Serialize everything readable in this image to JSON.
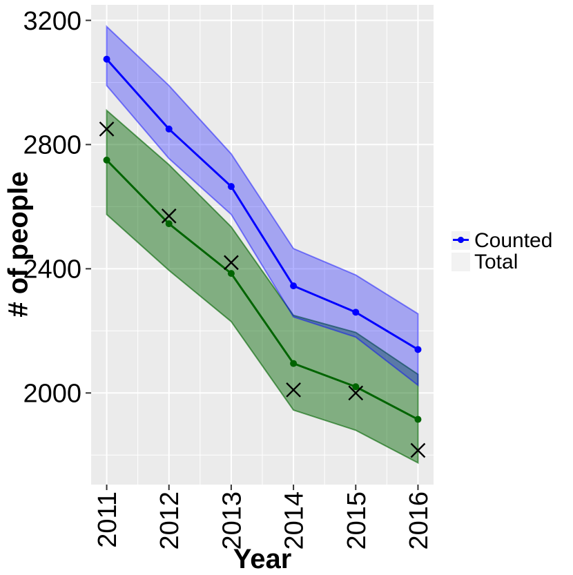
{
  "figure": {
    "background": "#ffffff",
    "panel_background": "#EBEBEB",
    "grid_color": "#FFFFFF",
    "tick_color": "#333333",
    "text_color": "#000000",
    "legend_key_background": "#F2F2F2"
  },
  "axes": {
    "x_title": "Year",
    "y_title": "# of people",
    "x_tick_labels": [
      "2011",
      "2012",
      "2013",
      "2014",
      "2015",
      "2016"
    ],
    "y_tick_labels": [
      "2000",
      "2400",
      "2800",
      "3200"
    ]
  },
  "legend": {
    "items": [
      {
        "label": "Counted",
        "color": "#006400"
      },
      {
        "label": "Total",
        "color": "#0000FF"
      }
    ]
  },
  "chart_data": {
    "type": "line",
    "title": "",
    "xlabel": "Year",
    "ylabel": "# of people",
    "x": [
      2011,
      2012,
      2013,
      2014,
      2015,
      2016
    ],
    "series": [
      {
        "name": "Counted",
        "color": "#006400",
        "ribbon_alpha": 0.45,
        "values": [
          2750,
          2545,
          2385,
          2095,
          2020,
          1915
        ],
        "upper": [
          2910,
          2735,
          2535,
          2250,
          2195,
          2060
        ],
        "lower": [
          2575,
          2395,
          2230,
          1945,
          1880,
          1775
        ]
      },
      {
        "name": "Total",
        "color": "#0000FF",
        "ribbon_alpha": 0.3,
        "values": [
          3075,
          2850,
          2665,
          2345,
          2260,
          2140
        ],
        "upper": [
          3180,
          2990,
          2770,
          2465,
          2380,
          2255
        ],
        "lower": [
          2990,
          2755,
          2575,
          2245,
          2180,
          2025
        ]
      }
    ],
    "x_markers": {
      "shape": "cross",
      "color": "#000000",
      "values": [
        2850,
        2570,
        2420,
        2010,
        2000,
        1815
      ]
    },
    "xlim": [
      2010.75,
      2016.25
    ],
    "ylim": [
      1705,
      3250
    ],
    "x_major_grid": [
      2011,
      2012,
      2013,
      2014,
      2015,
      2016
    ],
    "x_minor_grid": [
      2011.5,
      2012.5,
      2013.5,
      2014.5,
      2015.5
    ],
    "y_major_grid": [
      2000,
      2400,
      2800,
      3200
    ],
    "y_minor_grid": [
      1800,
      2200,
      2600,
      3000
    ],
    "grid": true,
    "legend_position": "right"
  }
}
